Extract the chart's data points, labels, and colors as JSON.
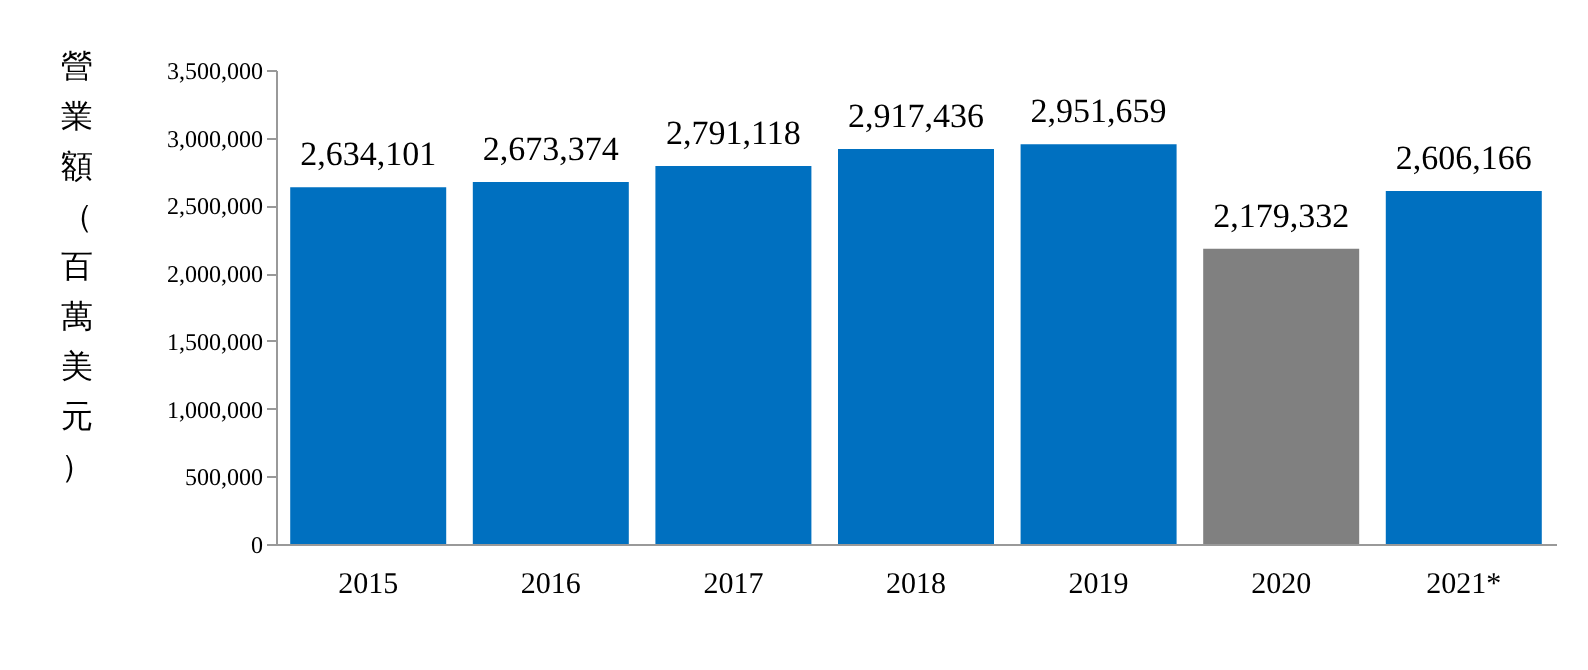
{
  "chart_data": {
    "type": "bar",
    "ylabel": "營業額（百萬美元）",
    "categories": [
      "2015",
      "2016",
      "2017",
      "2018",
      "2019",
      "2020",
      "2021*"
    ],
    "values": [
      2634101,
      2673374,
      2791118,
      2917436,
      2951659,
      2179332,
      2606166
    ],
    "colors": [
      "#0070c0",
      "#0070c0",
      "#0070c0",
      "#0070c0",
      "#0070c0",
      "#808080",
      "#0070c0"
    ],
    "ylim": [
      0,
      3500000
    ],
    "yticks": [
      0,
      {
        "value": 500000,
        "label": "500,000"
      },
      {
        "value": 1000000,
        "label": "1,000,000"
      },
      {
        "value": 1500000,
        "label": "1,500,000"
      },
      {
        "value": 2000000,
        "label": "2,000,000"
      },
      {
        "value": 2500000,
        "label": "2,500,000"
      },
      {
        "value": 3000000,
        "label": "3,000,000"
      },
      {
        "value": 3500000,
        "label": "3,500,000"
      }
    ],
    "value_labels": [
      "2,634,101",
      "2,673,374",
      "2,791,118",
      "2,917,436",
      "2,951,659",
      "2,179,332",
      "2,606,166"
    ],
    "grid": false
  }
}
